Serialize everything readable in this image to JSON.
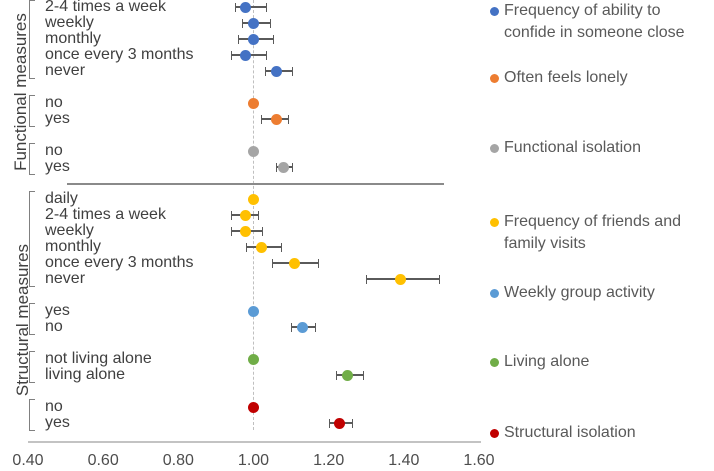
{
  "chart_data": {
    "type": "scatter",
    "subtype": "forest-plot-dot-whisker",
    "x_axis": {
      "min": 0.4,
      "max": 1.6,
      "tick_values": [
        0.4,
        0.6,
        0.8,
        1.0,
        1.2,
        1.4,
        1.6
      ],
      "tick_labels": [
        "0.40",
        "0.60",
        "0.80",
        "1.00",
        "1.20",
        "1.40",
        "1.60"
      ],
      "reference_line_x": 1.0,
      "grid": false
    },
    "legend_position": "right",
    "sections": [
      {
        "name": "Functional measures",
        "series": [
          {
            "name": "Frequency of ability to confide in someone close",
            "color": "#4472C4",
            "points": [
              {
                "label": "2-4 times a week",
                "value": 0.98,
                "ci_low": 0.95,
                "ci_high": 1.03
              },
              {
                "label": "weekly",
                "value": 1.0,
                "ci_low": 0.97,
                "ci_high": 1.04
              },
              {
                "label": "monthly",
                "value": 1.0,
                "ci_low": 0.96,
                "ci_high": 1.05
              },
              {
                "label": "once every 3 months",
                "value": 0.98,
                "ci_low": 0.94,
                "ci_high": 1.03
              },
              {
                "label": "never",
                "value": 1.06,
                "ci_low": 1.03,
                "ci_high": 1.1
              }
            ]
          },
          {
            "name": "Often feels lonely",
            "color": "#ED7D31",
            "points": [
              {
                "label": "no",
                "value": 1.0
              },
              {
                "label": "yes",
                "value": 1.06,
                "ci_low": 1.02,
                "ci_high": 1.09
              }
            ]
          },
          {
            "name": "Functional isolation",
            "color": "#A5A5A5",
            "points": [
              {
                "label": "no",
                "value": 1.0
              },
              {
                "label": "yes",
                "value": 1.08,
                "ci_low": 1.06,
                "ci_high": 1.1
              }
            ]
          }
        ]
      },
      {
        "name": "Structural measures",
        "series": [
          {
            "name": "Frequency of friends and family visits",
            "color": "#FFC000",
            "points": [
              {
                "label": "daily",
                "value": 1.0
              },
              {
                "label": "2-4 times a week",
                "value": 0.98,
                "ci_low": 0.94,
                "ci_high": 1.01
              },
              {
                "label": "weekly",
                "value": 0.98,
                "ci_low": 0.94,
                "ci_high": 1.02
              },
              {
                "label": "monthly",
                "value": 1.02,
                "ci_low": 0.98,
                "ci_high": 1.07
              },
              {
                "label": "once every 3 months",
                "value": 1.11,
                "ci_low": 1.05,
                "ci_high": 1.17
              },
              {
                "label": "never",
                "value": 1.39,
                "ci_low": 1.3,
                "ci_high": 1.49
              }
            ]
          },
          {
            "name": "Weekly group activity",
            "color": "#5B9BD5",
            "points": [
              {
                "label": "yes",
                "value": 1.0
              },
              {
                "label": "no",
                "value": 1.13,
                "ci_low": 1.1,
                "ci_high": 1.16
              }
            ]
          },
          {
            "name": "Living alone",
            "color": "#70AD47",
            "points": [
              {
                "label": "not living alone",
                "value": 1.0
              },
              {
                "label": "living alone",
                "value": 1.25,
                "ci_low": 1.22,
                "ci_high": 1.29
              }
            ]
          },
          {
            "name": "Structural isolation",
            "color": "#C00000",
            "points": [
              {
                "label": "no",
                "value": 1.0
              },
              {
                "label": "yes",
                "value": 1.23,
                "ci_low": 1.2,
                "ci_high": 1.26
              }
            ]
          }
        ]
      }
    ],
    "legend": [
      {
        "label": "Frequency of ability to confide in someone close",
        "color": "#4472C4"
      },
      {
        "label": "Often feels lonely",
        "color": "#ED7D31"
      },
      {
        "label": "Functional isolation",
        "color": "#A5A5A5"
      },
      {
        "label": "Frequency of friends and family visits",
        "color": "#FFC000"
      },
      {
        "label": "Weekly group activity",
        "color": "#5B9BD5"
      },
      {
        "label": "Living alone",
        "color": "#70AD47"
      },
      {
        "label": "Structural isolation",
        "color": "#C00000"
      }
    ],
    "style_colors": {
      "whisker": "#5a5a5a",
      "reference_line": "#bfbfbf",
      "axis_line": "#c3c3c3",
      "divider_line": "#8a8a8a",
      "text": "#404040",
      "legend_text": "#595959"
    }
  }
}
